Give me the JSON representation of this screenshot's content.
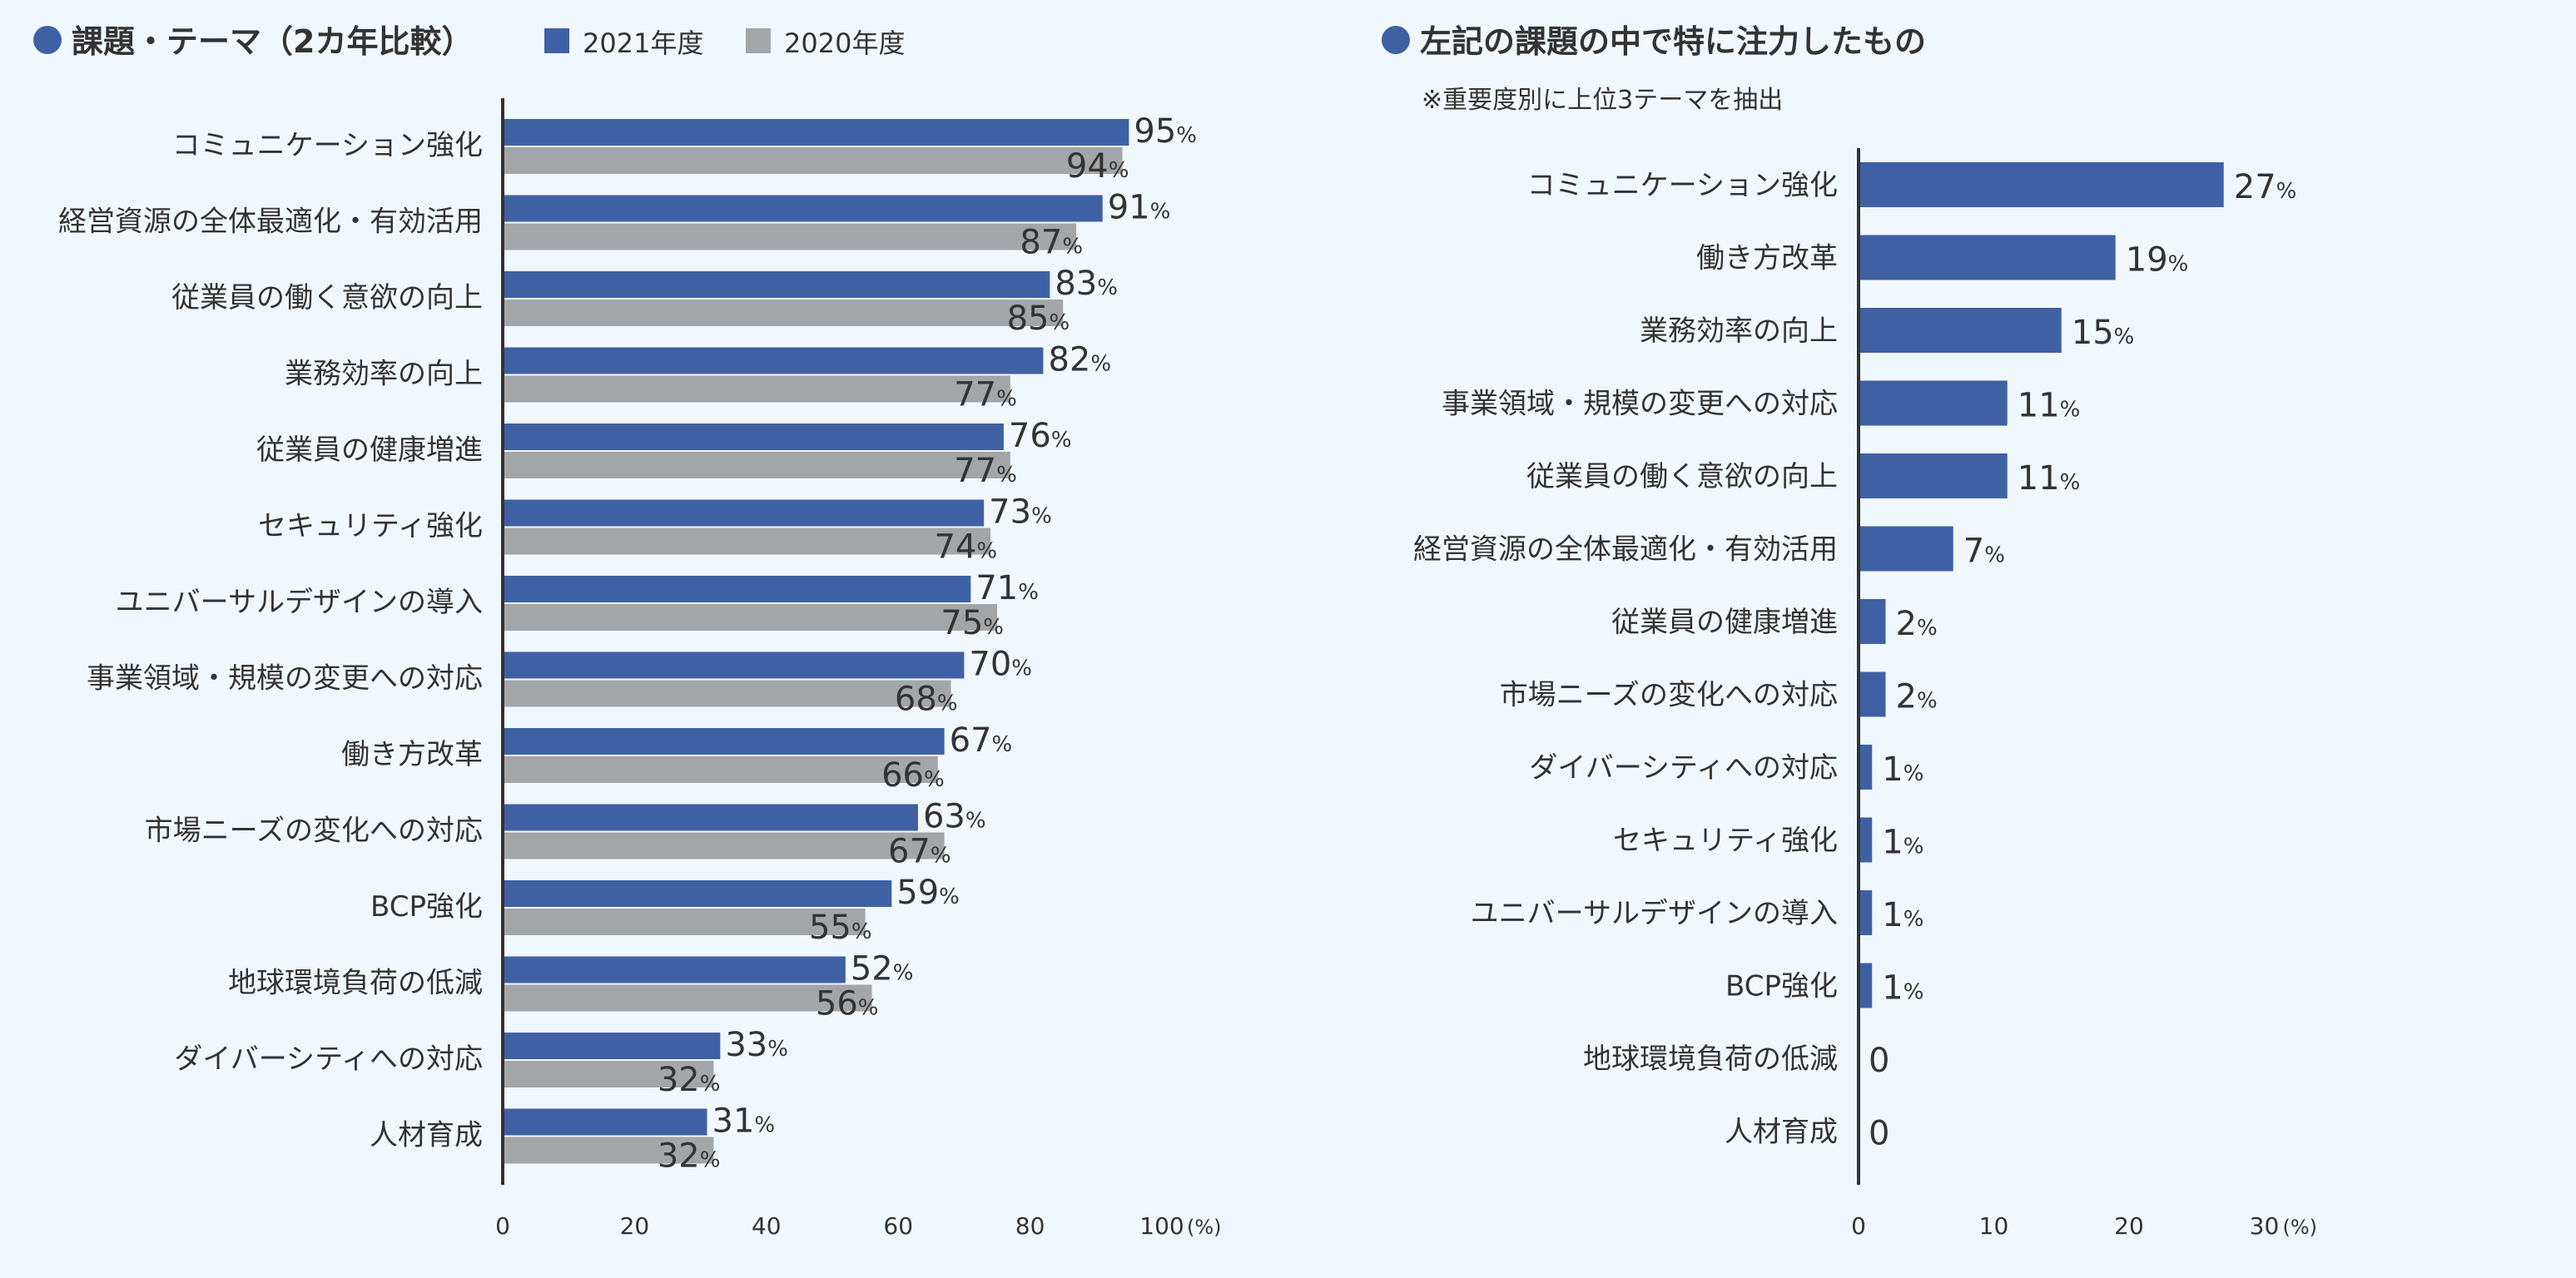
{
  "colors": {
    "y2021": "#3f61a4",
    "y2020": "#a3a6a9",
    "axis": "#333333",
    "text": "#333333",
    "bullet": "#3f61a4"
  },
  "left_panel": {
    "title": "課題・テーマ（2カ年比較）",
    "legend": [
      "2021年度",
      "2020年度"
    ]
  },
  "right_panel": {
    "title": "左記の課題の中で特に注力したもの",
    "note": "※重要度別に上位3テーマを抽出"
  },
  "chart_data": [
    {
      "type": "bar",
      "orientation": "horizontal",
      "title": "課題・テーマ（2カ年比較）",
      "categories": [
        "コミュニケーション強化",
        "経営資源の全体最適化・有効活用",
        "従業員の働く意欲の向上",
        "業務効率の向上",
        "従業員の健康増進",
        "セキュリティ強化",
        "ユニバーサルデザインの導入",
        "事業領域・規模の変更への対応",
        "働き方改革",
        "市場ニーズの変化への対応",
        "BCP強化",
        "地球環境負荷の低減",
        "ダイバーシティへの対応",
        "人材育成"
      ],
      "series": [
        {
          "name": "2021年度",
          "values": [
            95,
            91,
            83,
            82,
            76,
            73,
            71,
            70,
            67,
            63,
            59,
            52,
            33,
            31
          ]
        },
        {
          "name": "2020年度",
          "values": [
            94,
            87,
            85,
            77,
            77,
            74,
            75,
            68,
            66,
            67,
            55,
            56,
            32,
            32
          ]
        }
      ],
      "value_suffix": "%",
      "xlim": [
        0,
        100
      ],
      "xticks": [
        "0",
        "20",
        "40",
        "60",
        "80",
        "100"
      ],
      "xunit": "(%)",
      "legend_position": "top"
    },
    {
      "type": "bar",
      "orientation": "horizontal",
      "title": "左記の課題の中で特に注力したもの",
      "subtitle": "※重要度別に上位3テーマを抽出",
      "categories": [
        "コミュニケーション強化",
        "働き方改革",
        "業務効率の向上",
        "事業領域・規模の変更への対応",
        "従業員の働く意欲の向上",
        "経営資源の全体最適化・有効活用",
        "従業員の健康増進",
        "市場ニーズの変化への対応",
        "ダイバーシティへの対応",
        "セキュリティ強化",
        "ユニバーサルデザインの導入",
        "BCP強化",
        "地球環境負荷の低減",
        "人材育成"
      ],
      "values": [
        27,
        19,
        15,
        11,
        11,
        7,
        2,
        2,
        1,
        1,
        1,
        1,
        0,
        0
      ],
      "labels": [
        "27%",
        "19%",
        "15%",
        "11%",
        "11%",
        "7%",
        "2%",
        "2%",
        "1%",
        "1%",
        "1%",
        "1%",
        "0",
        "0"
      ],
      "xlim": [
        0,
        30
      ],
      "xticks": [
        "0",
        "10",
        "20",
        "30"
      ],
      "xunit": "(%)"
    }
  ]
}
